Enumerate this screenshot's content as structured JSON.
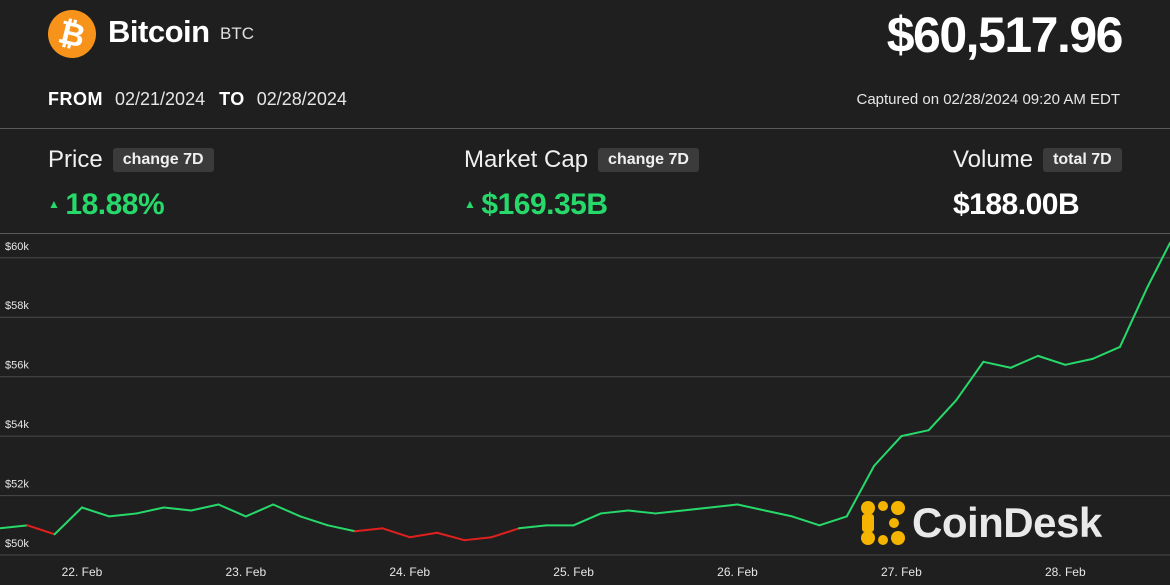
{
  "header": {
    "coin_name": "Bitcoin",
    "coin_symbol": "BTC",
    "logo_glyph": "₿",
    "price": "$60,517.96",
    "from_label": "FROM",
    "from_date": "02/21/2024",
    "to_label": "TO",
    "to_date": "02/28/2024",
    "captured": "Captured on 02/28/2024 09:20 AM EDT"
  },
  "stats": {
    "price": {
      "label": "Price",
      "tag": "change 7D",
      "value": "18.88%",
      "direction": "up"
    },
    "market_cap": {
      "label": "Market Cap",
      "tag": "change 7D",
      "value": "$169.35B",
      "direction": "up"
    },
    "volume": {
      "label": "Volume",
      "tag": "total 7D",
      "value": "$188.00B"
    }
  },
  "watermark": {
    "text": "CoinDesk",
    "icon": "coindesk-logo-icon"
  },
  "colors": {
    "background": "#1f1f1f",
    "up": "#27d96a",
    "down": "#e0201e",
    "grid": "#4a4a4a",
    "bitcoin_orange": "#f7931a",
    "coindesk_gold": "#f5b400"
  },
  "chart_data": {
    "type": "line",
    "title": "",
    "xlabel": "",
    "ylabel": "",
    "grid": true,
    "x_ticks": [
      "22. Feb",
      "23. Feb",
      "24. Feb",
      "25. Feb",
      "26. Feb",
      "27. Feb",
      "28. Feb"
    ],
    "y_ticks": [
      50000,
      52000,
      54000,
      56000,
      58000,
      60000
    ],
    "y_tick_labels": [
      "$50k",
      "$52k",
      "$54k",
      "$56k",
      "$58k",
      "$60k"
    ],
    "xlim": [
      "2024-02-21T12:00",
      "2024-02-28T15:20"
    ],
    "ylim": [
      49800,
      60800
    ],
    "series": [
      {
        "color_rule": "green above period start price, red below",
        "points": [
          [
            "2024-02-21T12:00",
            50900
          ],
          [
            "2024-02-21T16:00",
            51000
          ],
          [
            "2024-02-21T20:00",
            50700
          ],
          [
            "2024-02-22T00:00",
            51600
          ],
          [
            "2024-02-22T04:00",
            51300
          ],
          [
            "2024-02-22T08:00",
            51400
          ],
          [
            "2024-02-22T12:00",
            51600
          ],
          [
            "2024-02-22T16:00",
            51500
          ],
          [
            "2024-02-22T20:00",
            51700
          ],
          [
            "2024-02-23T00:00",
            51300
          ],
          [
            "2024-02-23T04:00",
            51700
          ],
          [
            "2024-02-23T08:00",
            51300
          ],
          [
            "2024-02-23T12:00",
            51000
          ],
          [
            "2024-02-23T16:00",
            50800
          ],
          [
            "2024-02-23T20:00",
            50900
          ],
          [
            "2024-02-24T00:00",
            50600
          ],
          [
            "2024-02-24T04:00",
            50750
          ],
          [
            "2024-02-24T08:00",
            50500
          ],
          [
            "2024-02-24T12:00",
            50600
          ],
          [
            "2024-02-24T16:00",
            50900
          ],
          [
            "2024-02-24T20:00",
            51000
          ],
          [
            "2024-02-25T00:00",
            51000
          ],
          [
            "2024-02-25T04:00",
            51400
          ],
          [
            "2024-02-25T08:00",
            51500
          ],
          [
            "2024-02-25T12:00",
            51400
          ],
          [
            "2024-02-25T16:00",
            51500
          ],
          [
            "2024-02-25T20:00",
            51600
          ],
          [
            "2024-02-26T00:00",
            51700
          ],
          [
            "2024-02-26T04:00",
            51500
          ],
          [
            "2024-02-26T08:00",
            51300
          ],
          [
            "2024-02-26T12:00",
            51000
          ],
          [
            "2024-02-26T16:00",
            51300
          ],
          [
            "2024-02-26T20:00",
            53000
          ],
          [
            "2024-02-27T00:00",
            54000
          ],
          [
            "2024-02-27T04:00",
            54200
          ],
          [
            "2024-02-27T08:00",
            55200
          ],
          [
            "2024-02-27T12:00",
            56500
          ],
          [
            "2024-02-27T16:00",
            56300
          ],
          [
            "2024-02-27T20:00",
            56700
          ],
          [
            "2024-02-28T00:00",
            56400
          ],
          [
            "2024-02-28T04:00",
            56600
          ],
          [
            "2024-02-28T08:00",
            57000
          ],
          [
            "2024-02-28T12:00",
            59000
          ],
          [
            "2024-02-28T15:20",
            60500
          ]
        ]
      }
    ]
  }
}
